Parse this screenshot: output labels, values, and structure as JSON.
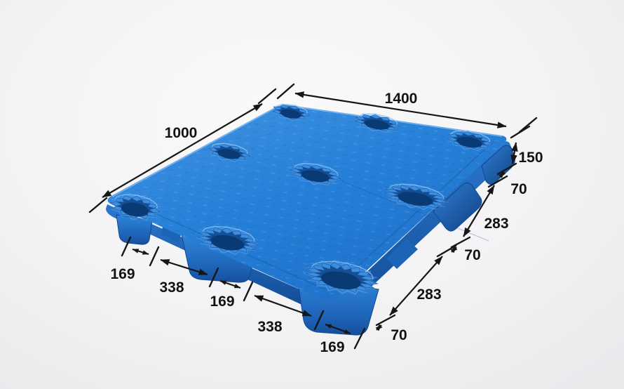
{
  "diagram": {
    "subject": "Blue plastic nestable pallet with nine molded feet",
    "view": "isometric product dimension drawing"
  },
  "dims": {
    "top_length": "1400",
    "side_width": "1000",
    "height": "150",
    "right_chain": [
      "70",
      "283",
      "70",
      "283",
      "70"
    ],
    "bottom_chain": [
      "169",
      "338",
      "169",
      "338",
      "169"
    ]
  },
  "colors": {
    "pallet_blue": "#2478d2",
    "pallet_dark_blue": "#134a92",
    "crater_shadow_blue": "#0a3a74",
    "dimension_line": "#161616",
    "background": "#ececee"
  }
}
